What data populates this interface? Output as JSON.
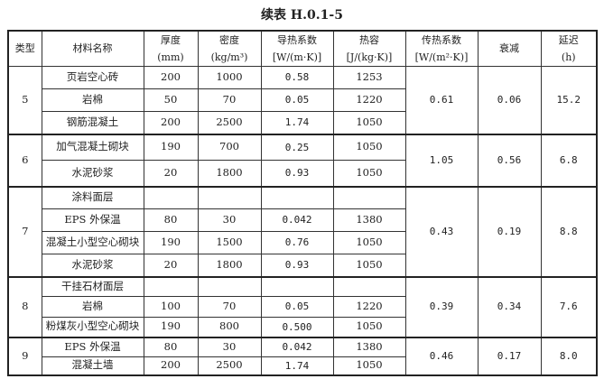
{
  "title": "续表 H.0.1-5",
  "headers": [
    {
      "l1": "类型",
      "l2": ""
    },
    {
      "l1": "材料名称",
      "l2": ""
    },
    {
      "l1": "厚度",
      "l2": "(mm)"
    },
    {
      "l1": "密度",
      "l2": "(kg/m³)"
    },
    {
      "l1": "导热系数",
      "l2": "[W/(m·K)]"
    },
    {
      "l1": "热容",
      "l2": "[J/(kg·K)]"
    },
    {
      "l1": "传热系数",
      "l2": "[W/(m²·K)]"
    },
    {
      "l1": "衰减",
      "l2": ""
    },
    {
      "l1": "延迟",
      "l2": "(h)"
    }
  ],
  "groups": [
    {
      "type": "5",
      "u": "0.61",
      "attenuation": "0.06",
      "delay": "15.2",
      "rows": [
        {
          "name": "页岩空心砖",
          "thickness": "200",
          "density": "1000",
          "conductivity": "0.58",
          "heat": "1253"
        },
        {
          "name": "岩棉",
          "thickness": "50",
          "density": "70",
          "conductivity": "0.05",
          "heat": "1220"
        },
        {
          "name": "钢筋混凝土",
          "thickness": "200",
          "density": "2500",
          "conductivity": "1.74",
          "heat": "1050"
        }
      ]
    },
    {
      "type": "6",
      "u": "1.05",
      "attenuation": "0.56",
      "delay": "6.8",
      "rows": [
        {
          "name": "加气混凝土砌块",
          "thickness": "190",
          "density": "700",
          "conductivity": "0.25",
          "heat": "1050"
        },
        {
          "name": "水泥砂浆",
          "thickness": "20",
          "density": "1800",
          "conductivity": "0.93",
          "heat": "1050"
        }
      ]
    },
    {
      "type": "7",
      "u": "0.43",
      "attenuation": "0.19",
      "delay": "8.8",
      "rows": [
        {
          "name": "涂料面层",
          "thickness": "",
          "density": "",
          "conductivity": "",
          "heat": ""
        },
        {
          "name": "EPS 外保温",
          "thickness": "80",
          "density": "30",
          "conductivity": "0.042",
          "heat": "1380"
        },
        {
          "name": "混凝土小型空心砌块",
          "thickness": "190",
          "density": "1500",
          "conductivity": "0.76",
          "heat": "1050"
        },
        {
          "name": "水泥砂浆",
          "thickness": "20",
          "density": "1800",
          "conductivity": "0.93",
          "heat": "1050"
        }
      ]
    },
    {
      "type": "8",
      "u": "0.39",
      "attenuation": "0.34",
      "delay": "7.6",
      "rows": [
        {
          "name": "干挂石材面层",
          "thickness": "",
          "density": "",
          "conductivity": "",
          "heat": ""
        },
        {
          "name": "岩棉",
          "thickness": "100",
          "density": "70",
          "conductivity": "0.05",
          "heat": "1220"
        },
        {
          "name": "粉煤灰小型空心砌块",
          "thickness": "190",
          "density": "800",
          "conductivity": "0.500",
          "heat": "1050"
        }
      ]
    },
    {
      "type": "9",
      "u": "0.46",
      "attenuation": "0.17",
      "delay": "8.0",
      "rows": [
        {
          "name": "EPS 外保温",
          "thickness": "80",
          "density": "30",
          "conductivity": "0.042",
          "heat": "1380"
        },
        {
          "name": "混凝土墙",
          "thickness": "200",
          "density": "2500",
          "conductivity": "1.74",
          "heat": "1050"
        }
      ]
    }
  ]
}
